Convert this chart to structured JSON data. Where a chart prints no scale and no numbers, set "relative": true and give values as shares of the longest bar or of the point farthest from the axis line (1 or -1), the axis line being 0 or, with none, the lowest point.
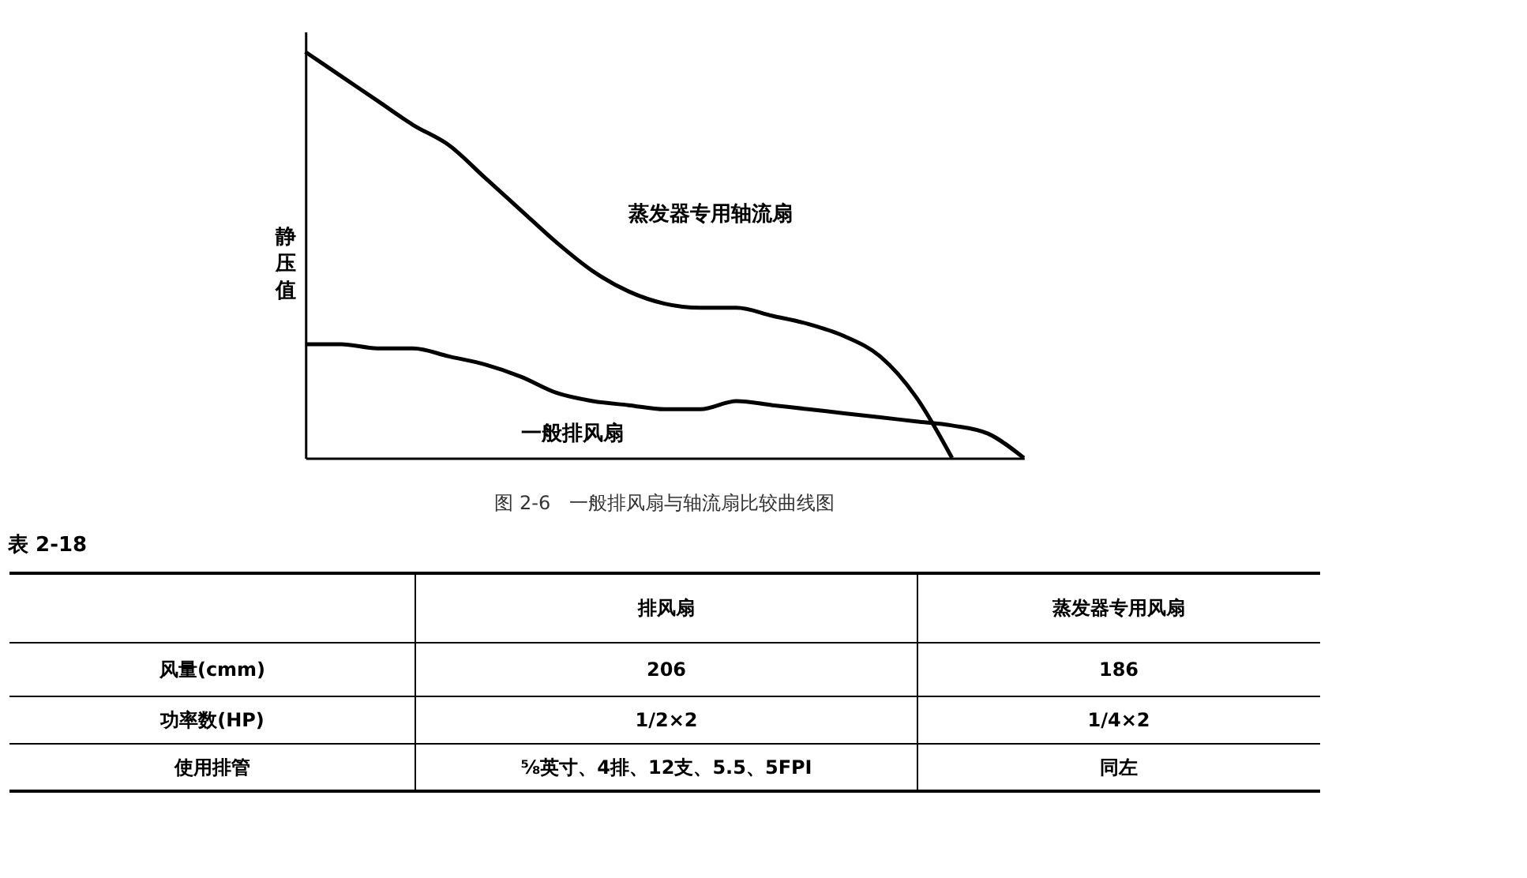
{
  "chart_data": [
    {
      "type": "line",
      "title": "图 2-6　一般排风扇与轴流扇比较曲线图",
      "ylabel": "静压值",
      "relative": true,
      "grid": false,
      "marker": "none",
      "line_style": "solid",
      "categories": [
        null,
        null,
        null,
        null,
        null,
        null,
        null,
        null,
        null,
        null,
        null,
        null,
        null,
        null,
        null,
        null,
        null,
        null,
        null,
        null,
        null
      ],
      "series": [
        {
          "name": "蒸发器专用轴流扇",
          "color": "#000000",
          "values": [
            1.0,
            0.94,
            0.88,
            0.82,
            0.77,
            0.69,
            0.61,
            0.53,
            0.46,
            0.41,
            0.38,
            0.37,
            0.37,
            0.35,
            0.33,
            0.3,
            0.25,
            0.15,
            0.0,
            null,
            null
          ]
        },
        {
          "name": "一般排风扇",
          "color": "#000000",
          "values": [
            0.28,
            0.28,
            0.27,
            0.27,
            0.25,
            0.23,
            0.2,
            0.16,
            0.14,
            0.13,
            0.12,
            0.12,
            0.14,
            0.13,
            0.12,
            0.11,
            0.1,
            0.09,
            0.08,
            0.06,
            0.0
          ]
        }
      ]
    },
    {
      "type": "other",
      "title": "表 2-18",
      "annotations": [
        "排风扇",
        "蒸发器专用风扇",
        "风量(cmm)",
        "206",
        "186",
        "功率数(HP)",
        "1/2×2",
        "1/4×2",
        "使用排管",
        "⅝英寸、4排、12支、5.5、5FPI",
        "同左"
      ]
    }
  ]
}
